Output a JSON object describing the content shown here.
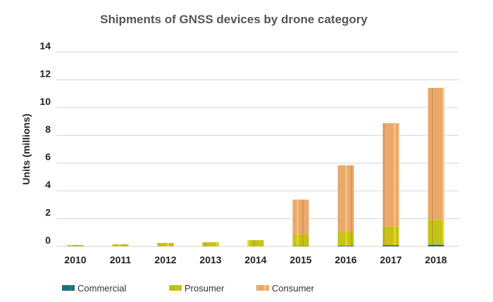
{
  "chart_data": {
    "type": "bar",
    "stacked": true,
    "title": "Shipments of GNSS devices by drone category",
    "xlabel": "",
    "ylabel": "Units (millions)",
    "ylim": [
      0,
      14
    ],
    "yticks": [
      0,
      2,
      4,
      6,
      8,
      10,
      12,
      14
    ],
    "grid": true,
    "legend_position": "bottom-left",
    "categories": [
      "2010",
      "2011",
      "2012",
      "2013",
      "2014",
      "2015",
      "2016",
      "2017",
      "2018"
    ],
    "series": [
      {
        "name": "Commercial",
        "color": "#1f6f78",
        "values": [
          0,
          0,
          0,
          0,
          0,
          0.02,
          0.04,
          0.08,
          0.12
        ]
      },
      {
        "name": "Prosumer",
        "color": "#c6c21a",
        "values": [
          0.1,
          0.15,
          0.25,
          0.3,
          0.45,
          0.85,
          1.0,
          1.35,
          1.8
        ]
      },
      {
        "name": "Consumer",
        "color": "#eaa96c",
        "values": [
          0,
          0,
          0,
          0,
          0,
          2.5,
          4.8,
          7.45,
          9.5
        ]
      }
    ]
  }
}
